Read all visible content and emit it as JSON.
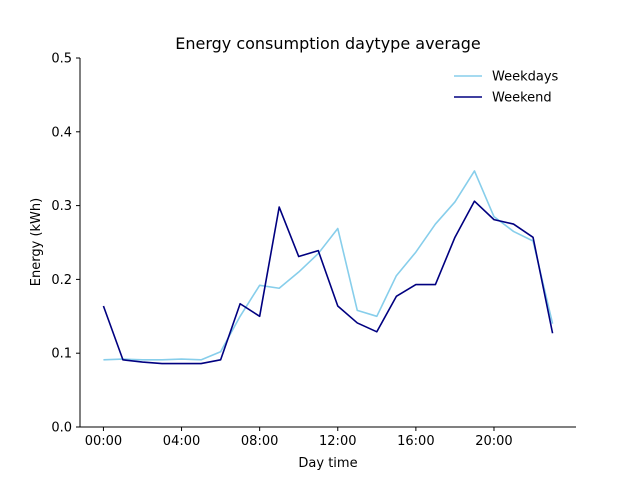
{
  "chart_data": {
    "type": "line",
    "title": "Energy consumption daytype average",
    "xlabel": "Day time",
    "ylabel": "Energy (kWh)",
    "xlim": [
      -1.2,
      24.2
    ],
    "ylim": [
      0,
      0.5
    ],
    "x": [
      0,
      1,
      2,
      3,
      4,
      5,
      6,
      7,
      8,
      9,
      10,
      11,
      12,
      13,
      14,
      15,
      16,
      17,
      18,
      19,
      20,
      21,
      22,
      23
    ],
    "xticks": [
      {
        "value": 0,
        "label": "00:00"
      },
      {
        "value": 4,
        "label": "04:00"
      },
      {
        "value": 8,
        "label": "08:00"
      },
      {
        "value": 12,
        "label": "12:00"
      },
      {
        "value": 16,
        "label": "16:00"
      },
      {
        "value": 20,
        "label": "20:00"
      }
    ],
    "yticks": [
      {
        "value": 0.0,
        "label": "0.0"
      },
      {
        "value": 0.1,
        "label": "0.1"
      },
      {
        "value": 0.2,
        "label": "0.2"
      },
      {
        "value": 0.3,
        "label": "0.3"
      },
      {
        "value": 0.4,
        "label": "0.4"
      },
      {
        "value": 0.5,
        "label": "0.5"
      }
    ],
    "series": [
      {
        "name": "Weekdays",
        "color": "#87ceeb",
        "values": [
          0.091,
          0.092,
          0.091,
          0.091,
          0.092,
          0.091,
          0.102,
          0.15,
          0.192,
          0.188,
          0.21,
          0.235,
          0.269,
          0.158,
          0.15,
          0.205,
          0.237,
          0.275,
          0.305,
          0.347,
          0.285,
          0.265,
          0.252,
          0.14
        ]
      },
      {
        "name": "Weekend",
        "color": "#000080",
        "values": [
          0.164,
          0.091,
          0.088,
          0.086,
          0.086,
          0.086,
          0.091,
          0.167,
          0.15,
          0.298,
          0.231,
          0.239,
          0.164,
          0.141,
          0.129,
          0.177,
          0.193,
          0.193,
          0.257,
          0.306,
          0.281,
          0.275,
          0.257,
          0.127
        ]
      }
    ],
    "legend": "top-right",
    "grid": false
  }
}
